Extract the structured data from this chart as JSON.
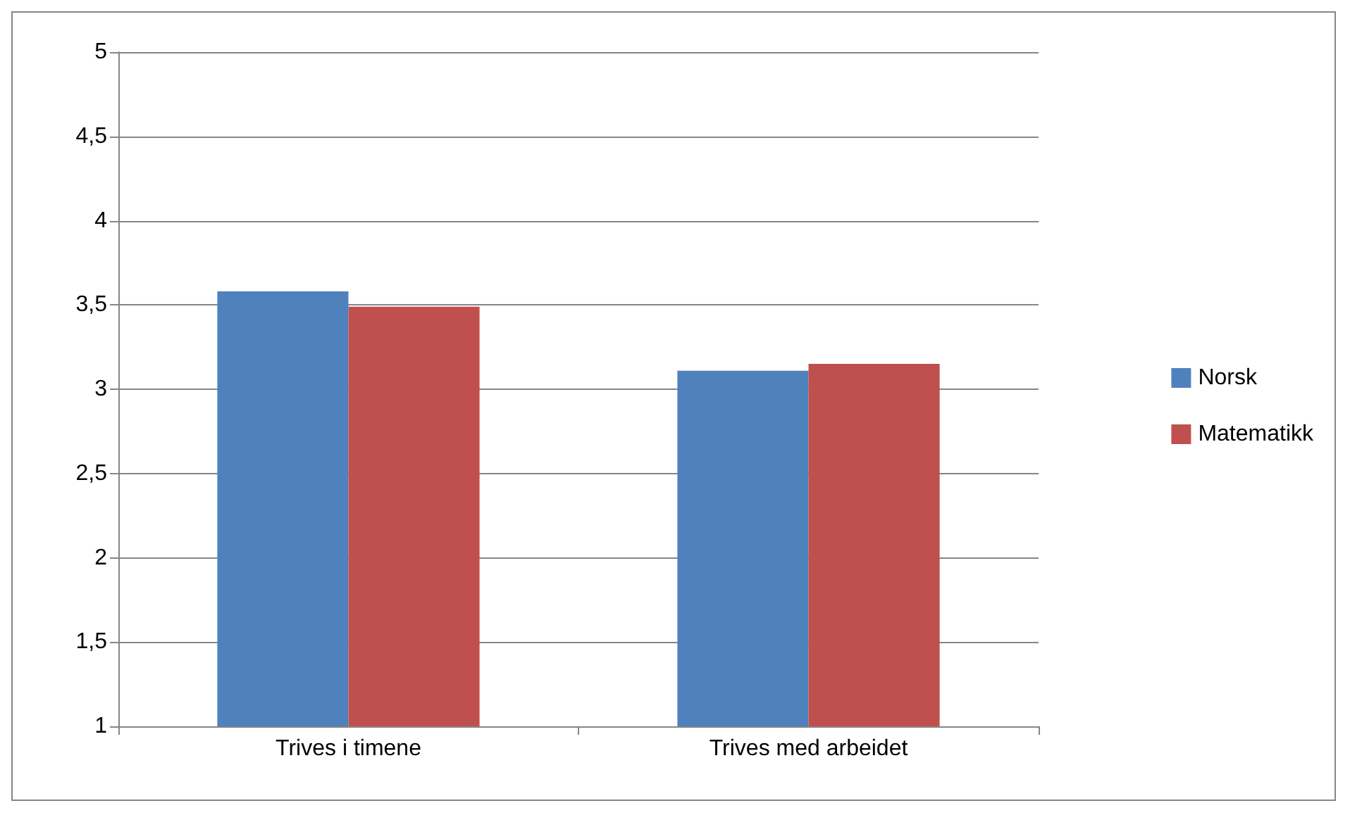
{
  "chart_data": {
    "type": "bar",
    "categories": [
      "Trives i timene",
      "Trives med arbeidet"
    ],
    "series": [
      {
        "name": "Norsk",
        "color": "#4f81bd",
        "values": [
          3.58,
          3.11
        ]
      },
      {
        "name": "Matematikk",
        "color": "#c0504d",
        "values": [
          3.49,
          3.15
        ]
      }
    ],
    "ylim": [
      1,
      5
    ],
    "yticks": [
      1,
      {
        "value": 1.5,
        "label": "1,5"
      },
      2,
      {
        "value": 2.5,
        "label": "2,5"
      },
      3,
      {
        "value": 3.5,
        "label": "3,5"
      },
      4,
      {
        "value": 4.5,
        "label": "4,5"
      },
      5
    ],
    "grid": "y",
    "legend": "right"
  }
}
